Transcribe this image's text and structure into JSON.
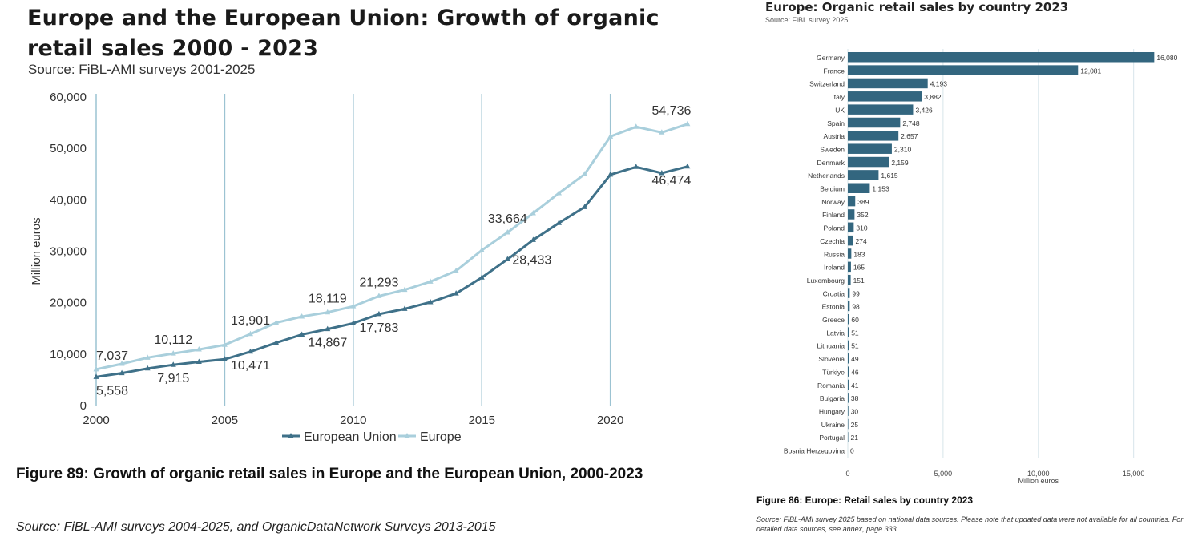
{
  "left": {
    "title": "Europe and the European Union: Growth of organic retail sales 2000 - 2023",
    "source": "Source: FiBL-AMI surveys 2001-2025",
    "caption": "Figure 89: Growth of organic retail sales in Europe and the European Union, 2000-2023",
    "source_bottom": "Source: FiBL-AMI surveys 2004-2025, and OrganicDataNetwork Surveys 2013-2015"
  },
  "right": {
    "title": "Europe: Organic retail sales by country 2023",
    "source": "Source: FiBL survey 2025",
    "caption": "Figure 86: Europe: Retail sales by country 2023",
    "source_bottom": "Source: FiBL-AMI survey 2025 based on national data sources. Please note that updated data were not available for all countries. For detailed data sources, see annex, page 333."
  },
  "colors": {
    "eu": "#3f7189",
    "europe": "#a9cfdc",
    "bar": "#33667f",
    "grid": "#d7e5ea",
    "vline": "#9cc3d2"
  },
  "chart_data": [
    {
      "type": "line",
      "title": "Europe and the European Union: Growth of organic retail sales 2000 - 2023",
      "xlabel": "",
      "ylabel": "Million euros",
      "ylim": [
        0,
        60000
      ],
      "xlim": [
        2000,
        2024
      ],
      "yticks": [
        0,
        10000,
        20000,
        30000,
        40000,
        50000,
        60000
      ],
      "ytick_labels": [
        "0",
        "10,000",
        "20,000",
        "30,000",
        "40,000",
        "50,000",
        "60,000"
      ],
      "xticks": [
        2000,
        2005,
        2010,
        2015,
        2020
      ],
      "xtick_labels": [
        "2000",
        "2005",
        "2010",
        "2015",
        "2020"
      ],
      "legend": "bottom",
      "x": [
        2000,
        2001,
        2002,
        2003,
        2004,
        2005,
        2006,
        2007,
        2008,
        2009,
        2010,
        2011,
        2012,
        2013,
        2014,
        2015,
        2016,
        2017,
        2018,
        2019,
        2020,
        2021,
        2022,
        2023
      ],
      "series": [
        {
          "name": "European Union",
          "values": [
            5558,
            6300,
            7200,
            7915,
            8500,
            9000,
            10471,
            12200,
            13800,
            14867,
            16000,
            17783,
            18800,
            20100,
            21800,
            24900,
            28433,
            32200,
            35500,
            38600,
            44900,
            46400,
            45200,
            46474
          ],
          "labels": [
            {
              "year": 2000,
              "text": "5,558",
              "pos": "below"
            },
            {
              "year": 2003,
              "text": "7,915",
              "pos": "below"
            },
            {
              "year": 2006,
              "text": "10,471",
              "pos": "below"
            },
            {
              "year": 2009,
              "text": "14,867",
              "pos": "below"
            },
            {
              "year": 2011,
              "text": "17,783",
              "pos": "below"
            },
            {
              "year": 2016,
              "text": "28,433",
              "pos": "right"
            },
            {
              "year": 2023,
              "text": "46,474",
              "pos": "below"
            }
          ]
        },
        {
          "name": "Europe",
          "values": [
            7037,
            8100,
            9300,
            10112,
            10900,
            11800,
            13901,
            16100,
            17300,
            18119,
            19300,
            21293,
            22500,
            24100,
            26200,
            30200,
            33664,
            37400,
            41300,
            45000,
            52300,
            54200,
            53100,
            54736
          ],
          "labels": [
            {
              "year": 2000,
              "text": "7,037",
              "pos": "above"
            },
            {
              "year": 2003,
              "text": "10,112",
              "pos": "above"
            },
            {
              "year": 2006,
              "text": "13,901",
              "pos": "above"
            },
            {
              "year": 2009,
              "text": "18,119",
              "pos": "above"
            },
            {
              "year": 2011,
              "text": "21,293",
              "pos": "above"
            },
            {
              "year": 2016,
              "text": "33,664",
              "pos": "above"
            },
            {
              "year": 2023,
              "text": "54,736",
              "pos": "above"
            }
          ]
        }
      ]
    },
    {
      "type": "bar",
      "orientation": "horizontal",
      "title": "Europe: Organic retail sales by country 2023",
      "xlabel": "Million euros",
      "ylabel": "",
      "xlim": [
        0,
        18000
      ],
      "xticks": [
        0,
        5000,
        10000,
        15000
      ],
      "xtick_labels": [
        "0",
        "5,000",
        "10,000",
        "15,000"
      ],
      "categories": [
        "Germany",
        "France",
        "Switzerland",
        "Italy",
        "UK",
        "Spain",
        "Austria",
        "Sweden",
        "Denmark",
        "Netherlands",
        "Belgium",
        "Norway",
        "Finland",
        "Poland",
        "Czechia",
        "Russia",
        "Ireland",
        "Luxembourg",
        "Croatia",
        "Estonia",
        "Greece",
        "Latvia",
        "Lithuania",
        "Slovenia",
        "Türkiye",
        "Romania",
        "Bulgaria",
        "Hungary",
        "Ukraine",
        "Portugal",
        "Bosnia Herzegovina"
      ],
      "values": [
        16080,
        12081,
        4193,
        3882,
        3426,
        2748,
        2657,
        2310,
        2159,
        1615,
        1153,
        389,
        352,
        310,
        274,
        183,
        165,
        151,
        99,
        98,
        60,
        51,
        51,
        49,
        46,
        41,
        38,
        30,
        25,
        21,
        0
      ],
      "value_labels": [
        "16,080",
        "12,081",
        "4,193",
        "3,882",
        "3,426",
        "2,748",
        "2,657",
        "2,310",
        "2,159",
        "1,615",
        "1,153",
        "389",
        "352",
        "310",
        "274",
        "183",
        "165",
        "151",
        "99",
        "98",
        "60",
        "51",
        "51",
        "49",
        "46",
        "41",
        "38",
        "30",
        "25",
        "21",
        "0"
      ]
    }
  ]
}
